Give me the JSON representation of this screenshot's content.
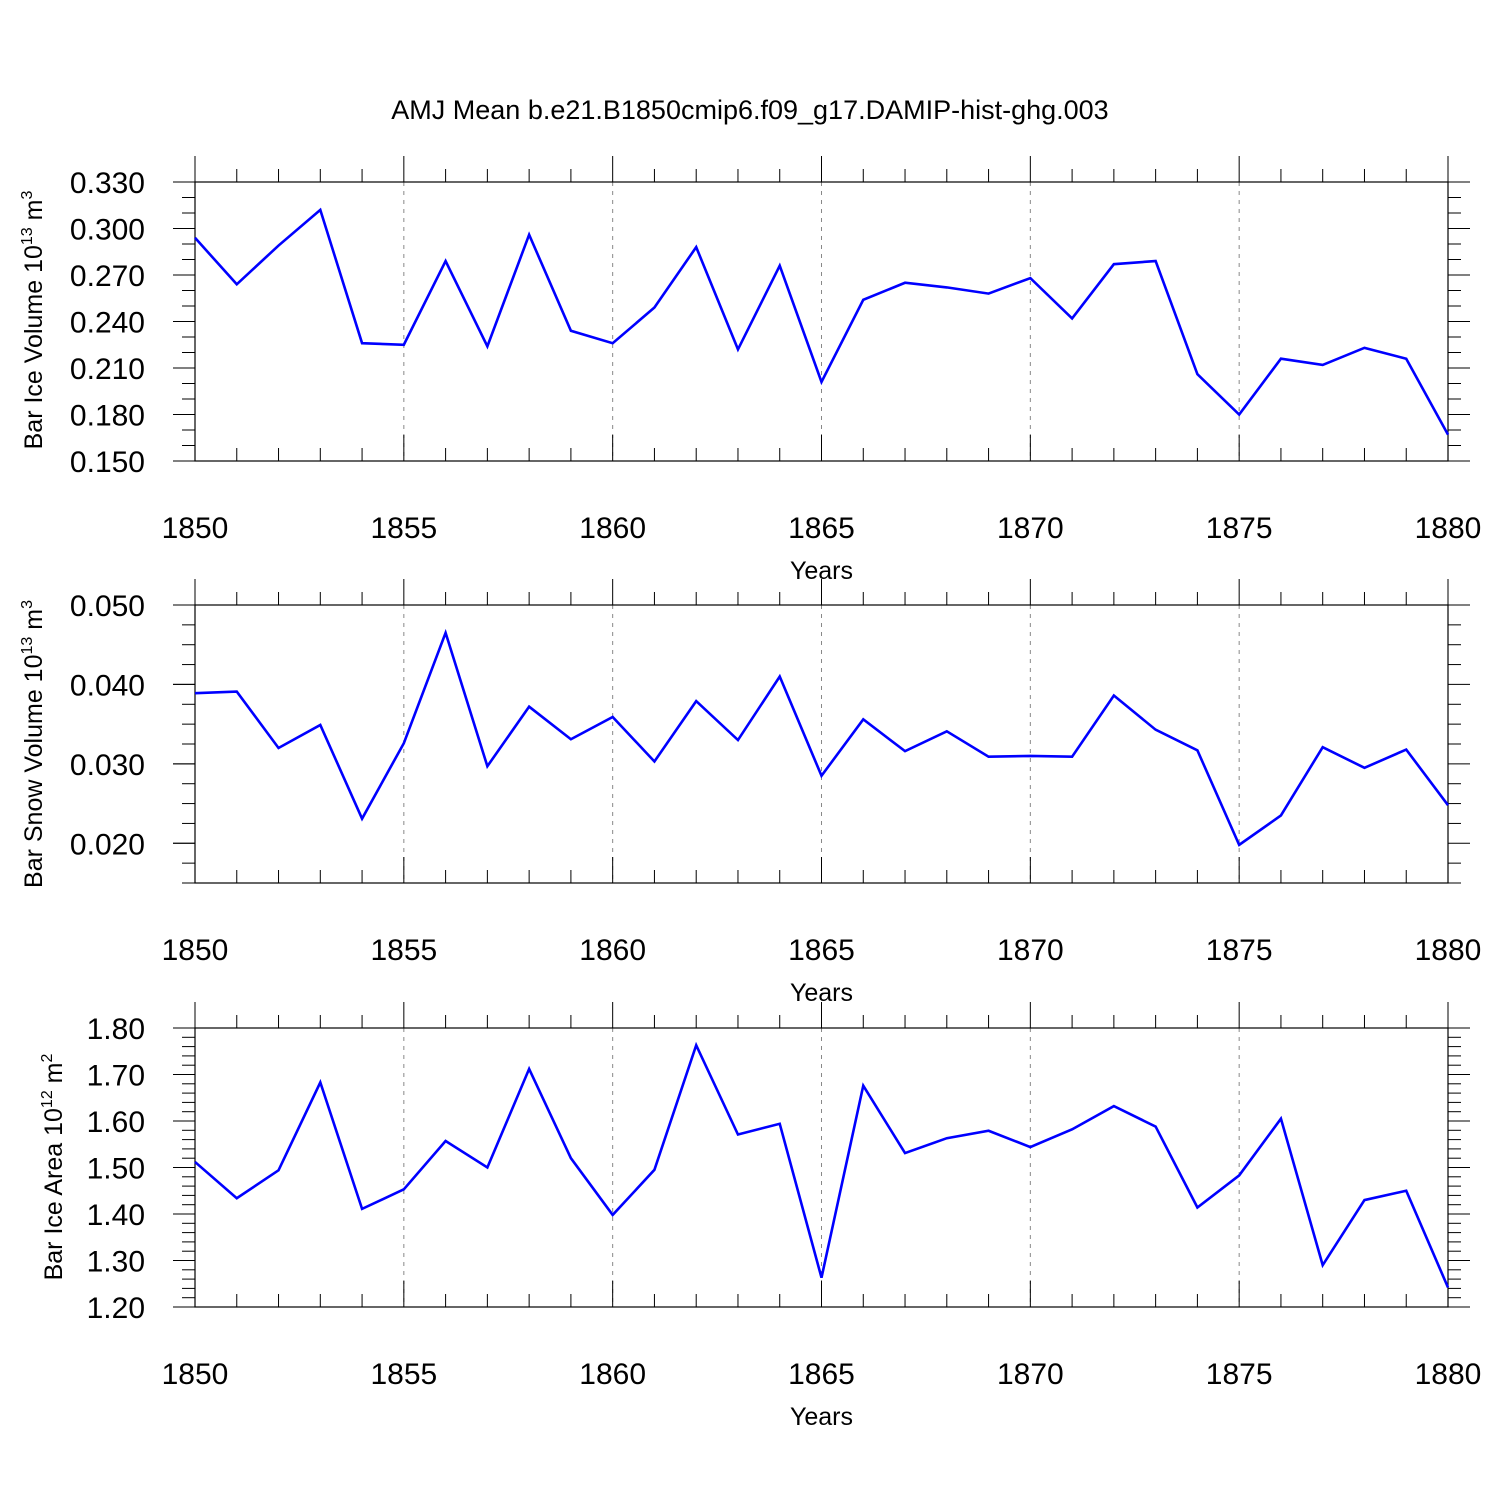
{
  "title": "AMJ Mean b.e21.B1850cmip6.f09_g17.DAMIP-hist-ghg.003",
  "colors": {
    "series": "#0000ff",
    "grid": "#888888",
    "axes": "#000000"
  },
  "chart_data": [
    {
      "type": "line",
      "ylabel": {
        "main": "Bar Ice Volume 10",
        "exp": "13",
        "unit": " m",
        "unit_exp": "3"
      },
      "xlabel": "Years",
      "xlim": [
        1850,
        1880
      ],
      "ylim": [
        0.15,
        0.33
      ],
      "x_ticks": [
        "1850",
        "1855",
        "1860",
        "1865",
        "1870",
        "1875",
        "1880"
      ],
      "y_ticks": [
        "0.150",
        "0.180",
        "0.210",
        "0.240",
        "0.270",
        "0.300",
        "0.330"
      ],
      "grid": "vertical dashed at major x ticks",
      "x": [
        1850,
        1851,
        1852,
        1853,
        1854,
        1855,
        1856,
        1857,
        1858,
        1859,
        1860,
        1861,
        1862,
        1863,
        1864,
        1865,
        1866,
        1867,
        1868,
        1869,
        1870,
        1871,
        1872,
        1873,
        1874,
        1875,
        1876,
        1877,
        1878,
        1879,
        1880
      ],
      "series": [
        {
          "values": [
            0.294,
            0.264,
            0.289,
            0.312,
            0.226,
            0.225,
            0.279,
            0.224,
            0.296,
            0.234,
            0.226,
            0.249,
            0.288,
            0.222,
            0.276,
            0.201,
            0.254,
            0.265,
            0.262,
            0.258,
            0.268,
            0.242,
            0.277,
            0.279,
            0.206,
            0.18,
            0.216,
            0.212,
            0.223,
            0.216,
            0.167
          ]
        }
      ]
    },
    {
      "type": "line",
      "ylabel": {
        "main": "Bar Snow Volume 10",
        "exp": "13",
        "unit": " m",
        "unit_exp": "3"
      },
      "xlabel": "Years",
      "xlim": [
        1850,
        1880
      ],
      "ylim": [
        0.015,
        0.05
      ],
      "x_ticks": [
        "1850",
        "1855",
        "1860",
        "1865",
        "1870",
        "1875",
        "1880"
      ],
      "y_ticks": [
        "0.020",
        "0.030",
        "0.040",
        "0.050"
      ],
      "grid": "vertical dashed at major x ticks",
      "x": [
        1850,
        1851,
        1852,
        1853,
        1854,
        1855,
        1856,
        1857,
        1858,
        1859,
        1860,
        1861,
        1862,
        1863,
        1864,
        1865,
        1866,
        1867,
        1868,
        1869,
        1870,
        1871,
        1872,
        1873,
        1874,
        1875,
        1876,
        1877,
        1878,
        1879,
        1880
      ],
      "series": [
        {
          "values": [
            0.0389,
            0.0391,
            0.032,
            0.0349,
            0.0231,
            0.0326,
            0.0465,
            0.0297,
            0.0372,
            0.0331,
            0.0359,
            0.0303,
            0.0379,
            0.033,
            0.041,
            0.0285,
            0.0356,
            0.0316,
            0.0341,
            0.0309,
            0.031,
            0.0309,
            0.0386,
            0.0343,
            0.0317,
            0.0198,
            0.0235,
            0.0321,
            0.0295,
            0.0318,
            0.0248
          ]
        }
      ]
    },
    {
      "type": "line",
      "ylabel": {
        "main": "Bar Ice Area 10",
        "exp": "12",
        "unit": " m",
        "unit_exp": "2"
      },
      "xlabel": "Years",
      "xlim": [
        1850,
        1880
      ],
      "ylim": [
        1.2,
        1.8
      ],
      "x_ticks": [
        "1850",
        "1855",
        "1860",
        "1865",
        "1870",
        "1875",
        "1880"
      ],
      "y_ticks": [
        "1.20",
        "1.30",
        "1.40",
        "1.50",
        "1.60",
        "1.70",
        "1.80"
      ],
      "grid": "vertical dashed at major x ticks",
      "x": [
        1850,
        1851,
        1852,
        1853,
        1854,
        1855,
        1856,
        1857,
        1858,
        1859,
        1860,
        1861,
        1862,
        1863,
        1864,
        1865,
        1866,
        1867,
        1868,
        1869,
        1870,
        1871,
        1872,
        1873,
        1874,
        1875,
        1876,
        1877,
        1878,
        1879,
        1880
      ],
      "series": [
        {
          "values": [
            1.512,
            1.434,
            1.494,
            1.683,
            1.411,
            1.453,
            1.557,
            1.5,
            1.712,
            1.52,
            1.398,
            1.495,
            1.763,
            1.571,
            1.594,
            1.263,
            1.676,
            1.531,
            1.563,
            1.579,
            1.544,
            1.582,
            1.632,
            1.588,
            1.414,
            1.483,
            1.605,
            1.29,
            1.43,
            1.45,
            1.242
          ]
        }
      ]
    }
  ]
}
